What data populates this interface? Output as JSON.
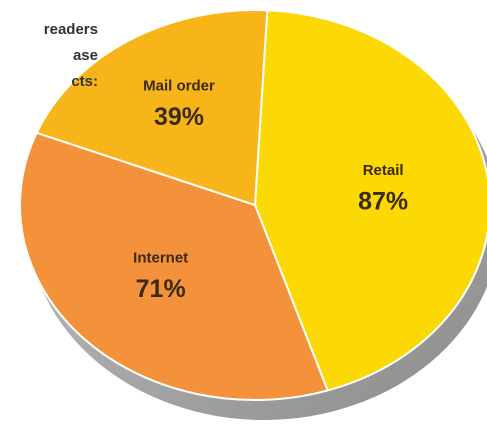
{
  "chart_data": {
    "type": "pie",
    "title": [
      "readers",
      "ase",
      "cts:"
    ],
    "categories": [
      "Retail",
      "Internet",
      "Mail order"
    ],
    "values": [
      87,
      71,
      39
    ],
    "value_labels": [
      "87%",
      "71%",
      "39%"
    ],
    "colors": [
      "#fcd804",
      "#f4913b",
      "#f8b519"
    ]
  }
}
